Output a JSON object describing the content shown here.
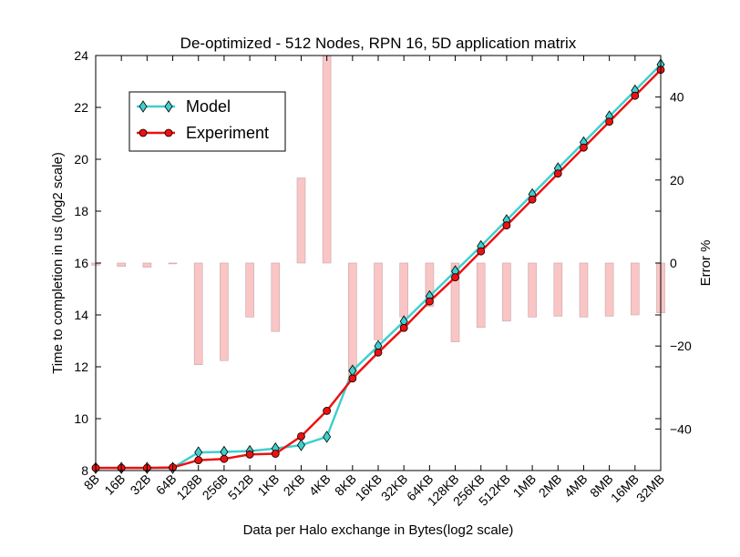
{
  "chart_data": {
    "type": "line",
    "title": "De-optimized - 512 Nodes, RPN 16, 5D application matrix",
    "xlabel": "Data per Halo exchange in Bytes(log2 scale)",
    "ylabel": "Time to completion in us (log2 scale)",
    "y2label": "Error %",
    "categories": [
      "8B",
      "16B",
      "32B",
      "64B",
      "128B",
      "256B",
      "512B",
      "1KB",
      "2KB",
      "4KB",
      "8KB",
      "16KB",
      "32KB",
      "64KB",
      "128KB",
      "256KB",
      "512KB",
      "1MB",
      "2MB",
      "4MB",
      "8MB",
      "16MB",
      "32MB"
    ],
    "ylim": [
      8,
      24
    ],
    "yticks": [
      8,
      10,
      12,
      14,
      16,
      18,
      20,
      22,
      24
    ],
    "y2lim": [
      -50,
      50
    ],
    "y2ticks": [
      -40,
      -20,
      0,
      20,
      40
    ],
    "series": [
      {
        "name": "Model",
        "color": "#40cfcf",
        "marker": "diamond",
        "values": [
          8.1,
          8.1,
          8.1,
          8.1,
          8.7,
          8.72,
          8.75,
          8.85,
          8.98,
          9.3,
          11.85,
          12.8,
          13.75,
          14.72,
          15.68,
          16.65,
          17.65,
          18.65,
          19.65,
          20.65,
          21.65,
          22.65,
          23.65
        ]
      },
      {
        "name": "Experiment",
        "color": "#ee1111",
        "marker": "circle",
        "values": [
          8.1,
          8.1,
          8.1,
          8.12,
          8.4,
          8.45,
          8.62,
          8.65,
          9.32,
          10.3,
          11.55,
          12.55,
          13.5,
          14.52,
          15.45,
          16.45,
          17.45,
          18.45,
          19.45,
          20.45,
          21.45,
          22.45,
          23.45
        ]
      }
    ],
    "error_bars": {
      "color": "#f9c5c5",
      "edge_color": "#c8a8a8",
      "values": [
        -0.5,
        -0.8,
        -1.0,
        -0.2,
        -24.5,
        -23.5,
        -13.0,
        -16.5,
        20.5,
        50,
        -27.5,
        -18.5,
        -13.0,
        -10.5,
        -19.0,
        -15.5,
        -14.0,
        -13.0,
        -12.8,
        -13.0,
        -12.8,
        -12.5,
        -12.0
      ]
    },
    "legend": {
      "position": "upper-left",
      "entries": [
        "Model",
        "Experiment"
      ]
    },
    "grid": false
  }
}
